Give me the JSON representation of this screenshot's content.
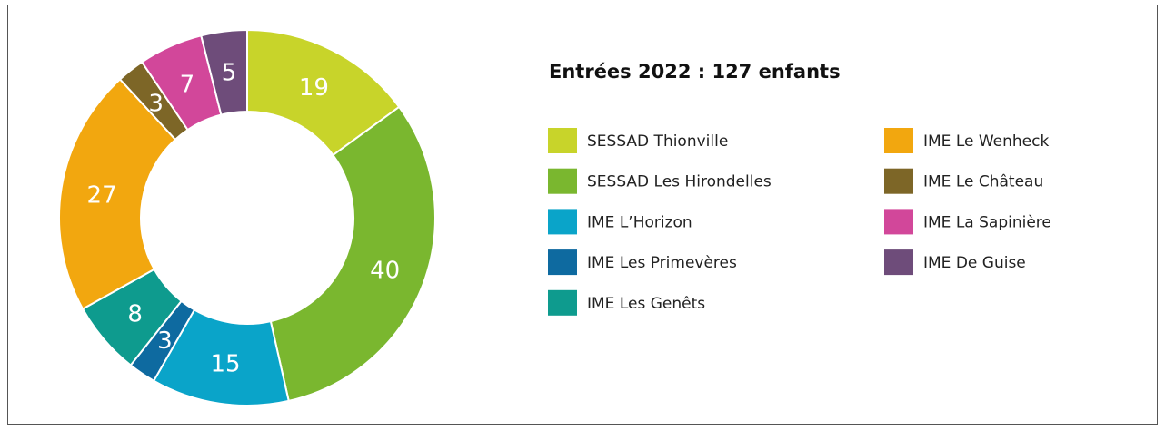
{
  "chart_data": {
    "type": "pie",
    "title": "Entrées 2022 : 127 enfants",
    "categories": [
      "SESSAD Thionville",
      "SESSAD Les Hirondelles",
      "IME L’Horizon",
      "IME Les Primevères",
      "IME Les Genêts",
      "IME Le Wenheck",
      "IME Le Château",
      "IME La Sapinière",
      "IME De Guise"
    ],
    "values": [
      19,
      40,
      15,
      3,
      8,
      27,
      3,
      7,
      5
    ],
    "colors": [
      "#c8d42a",
      "#7ab72f",
      "#0aa4c9",
      "#0e6aa0",
      "#0e9b8e",
      "#f2a70f",
      "#7d6627",
      "#d2479a",
      "#6e4c7a"
    ]
  }
}
